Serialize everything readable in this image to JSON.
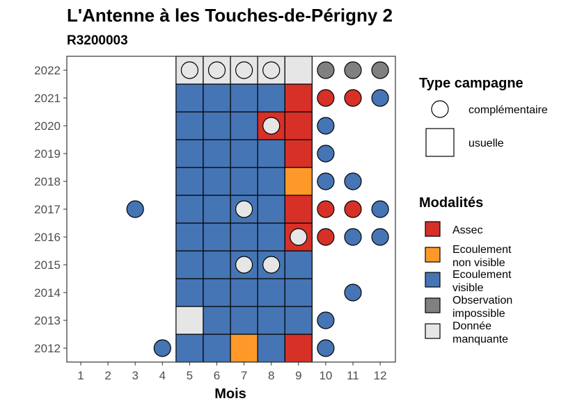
{
  "chart_data": {
    "type": "heatmap",
    "title": "L'Antenne à les Touches-de-Périgny 2",
    "subtitle": "R3200003",
    "xlabel": "Mois",
    "ylabel": "",
    "x_ticks": [
      "1",
      "2",
      "3",
      "4",
      "5",
      "6",
      "7",
      "8",
      "9",
      "10",
      "11",
      "12"
    ],
    "y_ticks": [
      "2012",
      "2013",
      "2014",
      "2015",
      "2016",
      "2017",
      "2018",
      "2019",
      "2020",
      "2021",
      "2022"
    ],
    "legend_campagne": {
      "title": "Type campagne",
      "items": [
        {
          "key": "complementaire",
          "label": "complémentaire",
          "shape": "circle"
        },
        {
          "key": "usuelle",
          "label": "usuelle",
          "shape": "square"
        }
      ]
    },
    "legend_modalites": {
      "title": "Modalités",
      "items": [
        {
          "key": "assec",
          "label_lines": [
            "Assec"
          ],
          "color": "#d73027"
        },
        {
          "key": "ecoulement_non_visible",
          "label_lines": [
            "Ecoulement",
            "non visible"
          ],
          "color": "#fe9929"
        },
        {
          "key": "ecoulement_visible",
          "label_lines": [
            "Ecoulement",
            "visible"
          ],
          "color": "#4575b4"
        },
        {
          "key": "observation_impossible",
          "label_lines": [
            "Observation",
            "impossible"
          ],
          "color": "#808080"
        },
        {
          "key": "donnee_manquante",
          "label_lines": [
            "Donnée",
            "manquante"
          ],
          "color": "#e6e6e6"
        }
      ]
    },
    "usual_months": [
      5,
      9
    ],
    "observations": [
      {
        "year": 2012,
        "month": 4,
        "campagne": "complementaire",
        "modalite": "ecoulement_visible"
      },
      {
        "year": 2012,
        "month": 5,
        "campagne": "usuelle",
        "modalite": "ecoulement_visible"
      },
      {
        "year": 2012,
        "month": 6,
        "campagne": "usuelle",
        "modalite": "ecoulement_visible"
      },
      {
        "year": 2012,
        "month": 7,
        "campagne": "usuelle",
        "modalite": "ecoulement_non_visible"
      },
      {
        "year": 2012,
        "month": 8,
        "campagne": "usuelle",
        "modalite": "ecoulement_visible"
      },
      {
        "year": 2012,
        "month": 9,
        "campagne": "usuelle",
        "modalite": "assec"
      },
      {
        "year": 2012,
        "month": 10,
        "campagne": "complementaire",
        "modalite": "ecoulement_visible"
      },
      {
        "year": 2013,
        "month": 5,
        "campagne": "usuelle",
        "modalite": "donnee_manquante"
      },
      {
        "year": 2013,
        "month": 6,
        "campagne": "usuelle",
        "modalite": "ecoulement_visible"
      },
      {
        "year": 2013,
        "month": 7,
        "campagne": "usuelle",
        "modalite": "ecoulement_visible"
      },
      {
        "year": 2013,
        "month": 8,
        "campagne": "usuelle",
        "modalite": "ecoulement_visible"
      },
      {
        "year": 2013,
        "month": 9,
        "campagne": "usuelle",
        "modalite": "ecoulement_visible"
      },
      {
        "year": 2013,
        "month": 10,
        "campagne": "complementaire",
        "modalite": "ecoulement_visible"
      },
      {
        "year": 2014,
        "month": 5,
        "campagne": "usuelle",
        "modalite": "ecoulement_visible"
      },
      {
        "year": 2014,
        "month": 6,
        "campagne": "usuelle",
        "modalite": "ecoulement_visible"
      },
      {
        "year": 2014,
        "month": 7,
        "campagne": "usuelle",
        "modalite": "ecoulement_visible"
      },
      {
        "year": 2014,
        "month": 8,
        "campagne": "usuelle",
        "modalite": "ecoulement_visible"
      },
      {
        "year": 2014,
        "month": 9,
        "campagne": "usuelle",
        "modalite": "ecoulement_visible"
      },
      {
        "year": 2014,
        "month": 11,
        "campagne": "complementaire",
        "modalite": "ecoulement_visible"
      },
      {
        "year": 2015,
        "month": 5,
        "campagne": "usuelle",
        "modalite": "ecoulement_visible"
      },
      {
        "year": 2015,
        "month": 6,
        "campagne": "usuelle",
        "modalite": "ecoulement_visible"
      },
      {
        "year": 2015,
        "month": 7,
        "campagne": "usuelle",
        "modalite": "ecoulement_visible"
      },
      {
        "year": 2015,
        "month": 8,
        "campagne": "usuelle",
        "modalite": "ecoulement_visible"
      },
      {
        "year": 2015,
        "month": 9,
        "campagne": "usuelle",
        "modalite": "ecoulement_visible"
      },
      {
        "year": 2015,
        "month": 7,
        "campagne": "complementaire",
        "modalite": "donnee_manquante"
      },
      {
        "year": 2015,
        "month": 8,
        "campagne": "complementaire",
        "modalite": "donnee_manquante"
      },
      {
        "year": 2016,
        "month": 5,
        "campagne": "usuelle",
        "modalite": "ecoulement_visible"
      },
      {
        "year": 2016,
        "month": 6,
        "campagne": "usuelle",
        "modalite": "ecoulement_visible"
      },
      {
        "year": 2016,
        "month": 7,
        "campagne": "usuelle",
        "modalite": "ecoulement_visible"
      },
      {
        "year": 2016,
        "month": 8,
        "campagne": "usuelle",
        "modalite": "ecoulement_visible"
      },
      {
        "year": 2016,
        "month": 9,
        "campagne": "usuelle",
        "modalite": "assec"
      },
      {
        "year": 2016,
        "month": 9,
        "campagne": "complementaire",
        "modalite": "donnee_manquante"
      },
      {
        "year": 2016,
        "month": 10,
        "campagne": "complementaire",
        "modalite": "assec"
      },
      {
        "year": 2016,
        "month": 11,
        "campagne": "complementaire",
        "modalite": "ecoulement_visible"
      },
      {
        "year": 2016,
        "month": 12,
        "campagne": "complementaire",
        "modalite": "ecoulement_visible"
      },
      {
        "year": 2017,
        "month": 3,
        "campagne": "complementaire",
        "modalite": "ecoulement_visible"
      },
      {
        "year": 2017,
        "month": 5,
        "campagne": "usuelle",
        "modalite": "ecoulement_visible"
      },
      {
        "year": 2017,
        "month": 6,
        "campagne": "usuelle",
        "modalite": "ecoulement_visible"
      },
      {
        "year": 2017,
        "month": 7,
        "campagne": "usuelle",
        "modalite": "ecoulement_visible"
      },
      {
        "year": 2017,
        "month": 8,
        "campagne": "usuelle",
        "modalite": "ecoulement_visible"
      },
      {
        "year": 2017,
        "month": 9,
        "campagne": "usuelle",
        "modalite": "assec"
      },
      {
        "year": 2017,
        "month": 7,
        "campagne": "complementaire",
        "modalite": "donnee_manquante"
      },
      {
        "year": 2017,
        "month": 10,
        "campagne": "complementaire",
        "modalite": "assec"
      },
      {
        "year": 2017,
        "month": 11,
        "campagne": "complementaire",
        "modalite": "assec"
      },
      {
        "year": 2017,
        "month": 12,
        "campagne": "complementaire",
        "modalite": "ecoulement_visible"
      },
      {
        "year": 2018,
        "month": 5,
        "campagne": "usuelle",
        "modalite": "ecoulement_visible"
      },
      {
        "year": 2018,
        "month": 6,
        "campagne": "usuelle",
        "modalite": "ecoulement_visible"
      },
      {
        "year": 2018,
        "month": 7,
        "campagne": "usuelle",
        "modalite": "ecoulement_visible"
      },
      {
        "year": 2018,
        "month": 8,
        "campagne": "usuelle",
        "modalite": "ecoulement_visible"
      },
      {
        "year": 2018,
        "month": 9,
        "campagne": "usuelle",
        "modalite": "ecoulement_non_visible"
      },
      {
        "year": 2018,
        "month": 10,
        "campagne": "complementaire",
        "modalite": "ecoulement_visible"
      },
      {
        "year": 2018,
        "month": 11,
        "campagne": "complementaire",
        "modalite": "ecoulement_visible"
      },
      {
        "year": 2019,
        "month": 5,
        "campagne": "usuelle",
        "modalite": "ecoulement_visible"
      },
      {
        "year": 2019,
        "month": 6,
        "campagne": "usuelle",
        "modalite": "ecoulement_visible"
      },
      {
        "year": 2019,
        "month": 7,
        "campagne": "usuelle",
        "modalite": "ecoulement_visible"
      },
      {
        "year": 2019,
        "month": 8,
        "campagne": "usuelle",
        "modalite": "ecoulement_visible"
      },
      {
        "year": 2019,
        "month": 9,
        "campagne": "usuelle",
        "modalite": "assec"
      },
      {
        "year": 2019,
        "month": 10,
        "campagne": "complementaire",
        "modalite": "ecoulement_visible"
      },
      {
        "year": 2020,
        "month": 5,
        "campagne": "usuelle",
        "modalite": "ecoulement_visible"
      },
      {
        "year": 2020,
        "month": 6,
        "campagne": "usuelle",
        "modalite": "ecoulement_visible"
      },
      {
        "year": 2020,
        "month": 7,
        "campagne": "usuelle",
        "modalite": "ecoulement_visible"
      },
      {
        "year": 2020,
        "month": 8,
        "campagne": "usuelle",
        "modalite": "assec"
      },
      {
        "year": 2020,
        "month": 9,
        "campagne": "usuelle",
        "modalite": "assec"
      },
      {
        "year": 2020,
        "month": 8,
        "campagne": "complementaire",
        "modalite": "donnee_manquante"
      },
      {
        "year": 2020,
        "month": 10,
        "campagne": "complementaire",
        "modalite": "ecoulement_visible"
      },
      {
        "year": 2021,
        "month": 5,
        "campagne": "usuelle",
        "modalite": "ecoulement_visible"
      },
      {
        "year": 2021,
        "month": 6,
        "campagne": "usuelle",
        "modalite": "ecoulement_visible"
      },
      {
        "year": 2021,
        "month": 7,
        "campagne": "usuelle",
        "modalite": "ecoulement_visible"
      },
      {
        "year": 2021,
        "month": 8,
        "campagne": "usuelle",
        "modalite": "ecoulement_visible"
      },
      {
        "year": 2021,
        "month": 9,
        "campagne": "usuelle",
        "modalite": "assec"
      },
      {
        "year": 2021,
        "month": 10,
        "campagne": "complementaire",
        "modalite": "assec"
      },
      {
        "year": 2021,
        "month": 11,
        "campagne": "complementaire",
        "modalite": "assec"
      },
      {
        "year": 2021,
        "month": 12,
        "campagne": "complementaire",
        "modalite": "ecoulement_visible"
      },
      {
        "year": 2022,
        "month": 5,
        "campagne": "usuelle",
        "modalite": "donnee_manquante"
      },
      {
        "year": 2022,
        "month": 6,
        "campagne": "usuelle",
        "modalite": "donnee_manquante"
      },
      {
        "year": 2022,
        "month": 7,
        "campagne": "usuelle",
        "modalite": "donnee_manquante"
      },
      {
        "year": 2022,
        "month": 8,
        "campagne": "usuelle",
        "modalite": "donnee_manquante"
      },
      {
        "year": 2022,
        "month": 9,
        "campagne": "usuelle",
        "modalite": "donnee_manquante"
      },
      {
        "year": 2022,
        "month": 5,
        "campagne": "complementaire",
        "modalite": "donnee_manquante"
      },
      {
        "year": 2022,
        "month": 6,
        "campagne": "complementaire",
        "modalite": "donnee_manquante"
      },
      {
        "year": 2022,
        "month": 7,
        "campagne": "complementaire",
        "modalite": "donnee_manquante"
      },
      {
        "year": 2022,
        "month": 8,
        "campagne": "complementaire",
        "modalite": "donnee_manquante"
      },
      {
        "year": 2022,
        "month": 10,
        "campagne": "complementaire",
        "modalite": "observation_impossible"
      },
      {
        "year": 2022,
        "month": 11,
        "campagne": "complementaire",
        "modalite": "observation_impossible"
      },
      {
        "year": 2022,
        "month": 12,
        "campagne": "complementaire",
        "modalite": "observation_impossible"
      }
    ]
  }
}
